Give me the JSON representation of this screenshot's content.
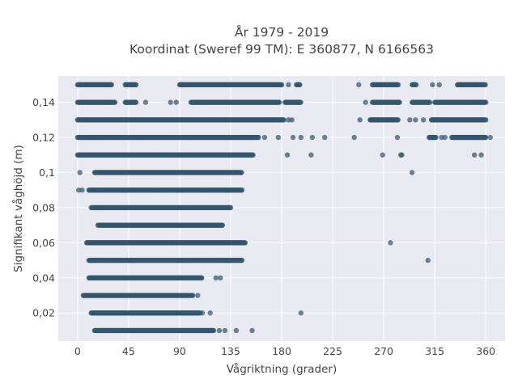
{
  "chart_data": {
    "type": "scatter",
    "title_line1": "År 1979 - 2019",
    "title_line2": "Koordinat (Sweref 99 TM): E 360877, N 6166563",
    "xlabel": "Vågriktning (grader)",
    "ylabel": "Signifikant våghöjd (m)",
    "xlim": [
      -17,
      377
    ],
    "ylim": [
      0.004,
      0.155
    ],
    "grid": true,
    "background": "#e8e9f1",
    "marker_color": "#34566d",
    "x_ticks": [
      0,
      45,
      90,
      135,
      180,
      225,
      270,
      315,
      360
    ],
    "x_tick_labels": [
      "0",
      "45",
      "90",
      "135",
      "180",
      "225",
      "270",
      "315",
      "360"
    ],
    "y_ticks": [
      0.02,
      0.04,
      0.06,
      0.08,
      0.1,
      0.12,
      0.14
    ],
    "y_tick_labels": [
      "0,02",
      "0,04",
      "0,06",
      "0,08",
      "0,1",
      "0,12",
      "0,14"
    ],
    "rows": [
      {
        "y": 0.15,
        "segments": [
          [
            0,
            30
          ],
          [
            42,
            52
          ],
          [
            90,
            180
          ],
          [
            193,
            196
          ],
          [
            260,
            283
          ],
          [
            295,
            299
          ],
          [
            335,
            360
          ]
        ],
        "points": [
          95,
          186,
          248,
          313,
          319
        ]
      },
      {
        "y": 0.14,
        "segments": [
          [
            0,
            33
          ],
          [
            42,
            52
          ],
          [
            100,
            178
          ],
          [
            183,
            197
          ],
          [
            260,
            284
          ],
          [
            295,
            311
          ],
          [
            315,
            360
          ]
        ],
        "points": [
          60,
          82,
          87,
          254
        ]
      },
      {
        "y": 0.13,
        "segments": [
          [
            0,
            182
          ],
          [
            258,
            283
          ],
          [
            312,
            360
          ]
        ],
        "points": [
          186,
          189,
          249,
          293,
          298,
          305,
          324
        ]
      },
      {
        "y": 0.12,
        "segments": [
          [
            0,
            160
          ],
          [
            310,
            316
          ],
          [
            330,
            360
          ]
        ],
        "points": [
          165,
          177,
          190,
          197,
          207,
          218,
          244,
          282,
          321,
          324,
          364
        ]
      },
      {
        "y": 0.11,
        "segments": [
          [
            0,
            155
          ]
        ],
        "points": [
          185,
          206,
          269,
          285,
          286,
          350,
          356
        ]
      },
      {
        "y": 0.1,
        "segments": [
          [
            15,
            145
          ]
        ],
        "points": [
          2,
          295
        ]
      },
      {
        "y": 0.09,
        "segments": [
          [
            10,
            145
          ]
        ],
        "points": [
          1,
          4
        ]
      },
      {
        "y": 0.08,
        "segments": [
          [
            12,
            135
          ]
        ],
        "points": []
      },
      {
        "y": 0.07,
        "segments": [
          [
            18,
            128
          ]
        ],
        "points": []
      },
      {
        "y": 0.06,
        "segments": [
          [
            8,
            148
          ]
        ],
        "points": [
          276
        ]
      },
      {
        "y": 0.05,
        "segments": [
          [
            10,
            145
          ]
        ],
        "points": [
          48,
          309
        ]
      },
      {
        "y": 0.04,
        "segments": [
          [
            10,
            110
          ]
        ],
        "points": [
          122,
          126
        ]
      },
      {
        "y": 0.03,
        "segments": [
          [
            5,
            102
          ]
        ],
        "points": [
          106
        ]
      },
      {
        "y": 0.02,
        "segments": [
          [
            12,
            108
          ]
        ],
        "points": [
          110,
          117,
          197
        ]
      },
      {
        "y": 0.01,
        "segments": [
          [
            15,
            120
          ]
        ],
        "points": [
          125,
          130,
          140,
          154
        ]
      }
    ]
  }
}
